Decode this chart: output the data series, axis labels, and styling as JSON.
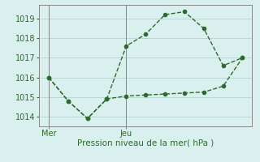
{
  "line1_x": [
    0,
    1,
    2,
    3,
    4,
    5,
    6,
    7,
    8,
    9,
    10
  ],
  "line1_y": [
    1016.0,
    1014.8,
    1013.9,
    1014.9,
    1017.6,
    1018.2,
    1019.2,
    1019.35,
    1018.5,
    1016.6,
    1017.0
  ],
  "line2_x": [
    0,
    1,
    2,
    3,
    4,
    5,
    6,
    7,
    8,
    9,
    10
  ],
  "line2_y": [
    1016.0,
    1014.8,
    1013.9,
    1014.9,
    1015.05,
    1015.1,
    1015.15,
    1015.2,
    1015.25,
    1015.55,
    1017.0
  ],
  "xlabel": "Pression niveau de la mer( hPa )",
  "yticks": [
    1014,
    1015,
    1016,
    1017,
    1018,
    1019
  ],
  "xtick_positions": [
    0,
    4
  ],
  "xtick_labels": [
    "Mer",
    "Jeu"
  ],
  "vline_positions": [
    0,
    4
  ],
  "line_color": "#2d6a2d",
  "bg_color": "#daf0ee",
  "grid_color": "#b8d8d4",
  "ylim": [
    1013.5,
    1019.7
  ],
  "xlim": [
    -0.5,
    10.5
  ]
}
